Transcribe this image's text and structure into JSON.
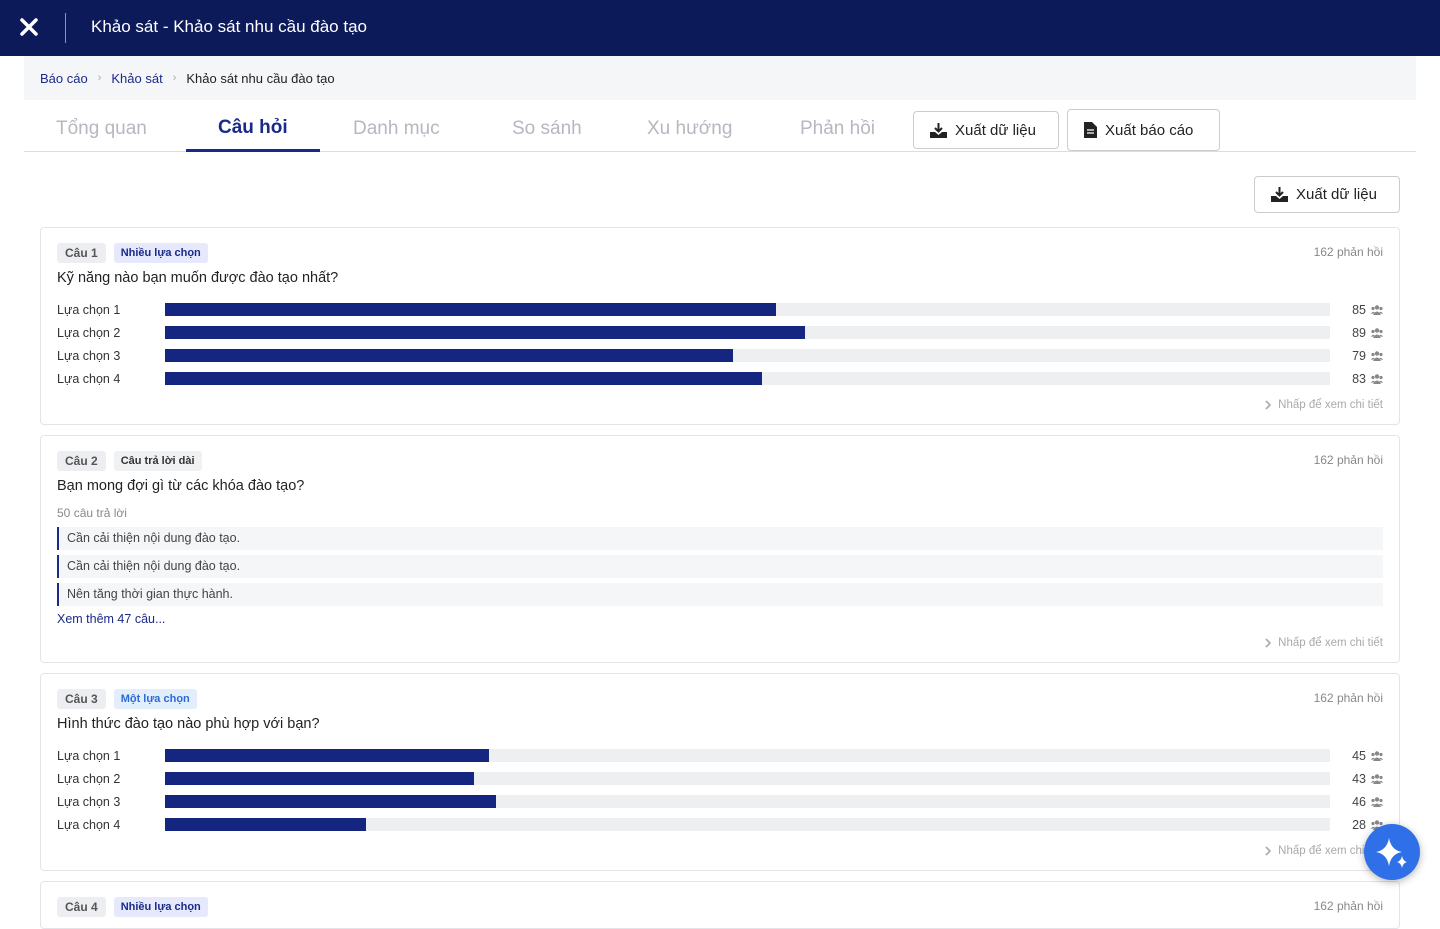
{
  "header": {
    "title": "Khảo sát - Khảo sát nhu cầu đào tạo"
  },
  "breadcrumb": [
    "Báo cáo",
    "Khảo sát",
    "Khảo sát nhu cầu đào tạo"
  ],
  "tabs": [
    "Tổng quan",
    "Câu hỏi",
    "Danh mục",
    "So sánh",
    "Xu hướng",
    "Phản hồi"
  ],
  "active_tab": 1,
  "tab_buttons": [
    "Xuất dữ liệu",
    "Xuất báo cáo"
  ],
  "export_button": "Xuất dữ liệu",
  "responses_unit": "phản hồi",
  "detail_link": "Nhấp để xem chi tiết",
  "questions": [
    {
      "number": "Câu 1",
      "type": "Nhiều lựa chọn",
      "responses": 162,
      "text": "Kỹ năng nào bạn muốn được đào tạo nhất?",
      "options": [
        {
          "label": "Lựa chọn 1",
          "value": 85
        },
        {
          "label": "Lựa chọn 2",
          "value": 89
        },
        {
          "label": "Lựa chọn 3",
          "value": 79
        },
        {
          "label": "Lựa chọn 4",
          "value": 83
        }
      ]
    },
    {
      "number": "Câu 2",
      "type": "Câu trả lời dài",
      "responses": 162,
      "text": "Bạn mong đợi gì từ các khóa đào tạo?",
      "answers_count": 50,
      "answers_unit": "câu trả lời",
      "answers": [
        "Cần cải thiện nội dung đào tạo.",
        "Cần cải thiện nội dung đào tạo.",
        "Nên tăng thời gian thực hành."
      ],
      "more": "Xem thêm 47 câu..."
    },
    {
      "number": "Câu 3",
      "type": "Một lựa chọn",
      "responses": 162,
      "text": "Hình thức đào tạo nào phù hợp với bạn?",
      "options": [
        {
          "label": "Lựa chọn 1",
          "value": 45
        },
        {
          "label": "Lựa chọn 2",
          "value": 43
        },
        {
          "label": "Lựa chọn 3",
          "value": 46
        },
        {
          "label": "Lựa chọn 4",
          "value": 28
        }
      ]
    },
    {
      "number": "Câu 4",
      "type": "Nhiều lựa chọn",
      "responses": 162
    }
  ]
}
